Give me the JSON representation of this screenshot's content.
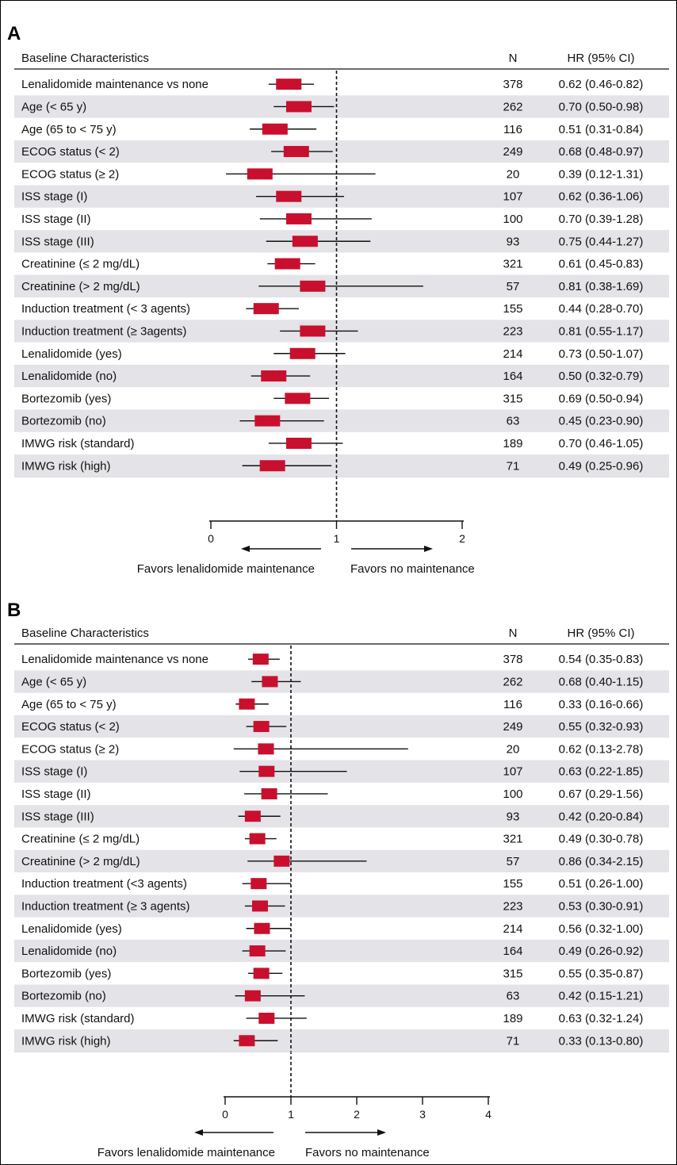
{
  "chart_data": [
    {
      "type": "forest",
      "panel_label": "A",
      "columns": {
        "characteristic": "Baseline Characteristics",
        "n": "N",
        "hr": "HR (95% CI)"
      },
      "xlim": [
        0,
        2
      ],
      "ticks": [
        "0",
        "1",
        "2"
      ],
      "reference_line": 1,
      "favors_left": "Favors lenalidomide maintenance",
      "favors_right": "Favors no maintenance",
      "rows": [
        {
          "label": "Lenalidomide maintenance vs none",
          "n": "378",
          "hr_text": "0.62 (0.46-0.82)",
          "hr": 0.62,
          "lo": 0.46,
          "hi": 0.82
        },
        {
          "label": "Age (< 65 y)",
          "n": "262",
          "hr_text": "0.70 (0.50-0.98)",
          "hr": 0.7,
          "lo": 0.5,
          "hi": 0.98
        },
        {
          "label": "Age (65 to < 75 y)",
          "n": "116",
          "hr_text": "0.51 (0.31-0.84)",
          "hr": 0.51,
          "lo": 0.31,
          "hi": 0.84
        },
        {
          "label": "ECOG status (< 2)",
          "n": "249",
          "hr_text": "0.68 (0.48-0.97)",
          "hr": 0.68,
          "lo": 0.48,
          "hi": 0.97
        },
        {
          "label": "ECOG status (≥ 2)",
          "n": "20",
          "hr_text": "0.39 (0.12-1.31)",
          "hr": 0.39,
          "lo": 0.12,
          "hi": 1.31
        },
        {
          "label": "ISS stage (I)",
          "n": "107",
          "hr_text": "0.62 (0.36-1.06)",
          "hr": 0.62,
          "lo": 0.36,
          "hi": 1.06
        },
        {
          "label": "ISS stage (II)",
          "n": "100",
          "hr_text": "0.70 (0.39-1.28)",
          "hr": 0.7,
          "lo": 0.39,
          "hi": 1.28
        },
        {
          "label": "ISS stage (III)",
          "n": "93",
          "hr_text": "0.75 (0.44-1.27)",
          "hr": 0.75,
          "lo": 0.44,
          "hi": 1.27
        },
        {
          "label": "Creatinine (≤ 2 mg/dL)",
          "n": "321",
          "hr_text": "0.61 (0.45-0.83)",
          "hr": 0.61,
          "lo": 0.45,
          "hi": 0.83
        },
        {
          "label": "Creatinine (> 2 mg/dL)",
          "n": "57",
          "hr_text": "0.81 (0.38-1.69)",
          "hr": 0.81,
          "lo": 0.38,
          "hi": 1.69
        },
        {
          "label": "Induction treatment (< 3 agents)",
          "n": "155",
          "hr_text": "0.44 (0.28-0.70)",
          "hr": 0.44,
          "lo": 0.28,
          "hi": 0.7
        },
        {
          "label": "Induction treatment (≥ 3agents)",
          "n": "223",
          "hr_text": "0.81 (0.55-1.17)",
          "hr": 0.81,
          "lo": 0.55,
          "hi": 1.17
        },
        {
          "label": "Lenalidomide (yes)",
          "n": "214",
          "hr_text": "0.73 (0.50-1.07)",
          "hr": 0.73,
          "lo": 0.5,
          "hi": 1.07
        },
        {
          "label": "Lenalidomide (no)",
          "n": "164",
          "hr_text": "0.50 (0.32-0.79)",
          "hr": 0.5,
          "lo": 0.32,
          "hi": 0.79
        },
        {
          "label": "Bortezomib (yes)",
          "n": "315",
          "hr_text": "0.69 (0.50-0.94)",
          "hr": 0.69,
          "lo": 0.5,
          "hi": 0.94
        },
        {
          "label": "Bortezomib (no)",
          "n": "63",
          "hr_text": "0.45 (0.23-0.90)",
          "hr": 0.45,
          "lo": 0.23,
          "hi": 0.9
        },
        {
          "label": "IMWG risk (standard)",
          "n": "189",
          "hr_text": "0.70 (0.46-1.05)",
          "hr": 0.7,
          "lo": 0.46,
          "hi": 1.05
        },
        {
          "label": "IMWG risk (high)",
          "n": "71",
          "hr_text": "0.49 (0.25-0.96)",
          "hr": 0.49,
          "lo": 0.25,
          "hi": 0.96
        }
      ]
    },
    {
      "type": "forest",
      "panel_label": "B",
      "columns": {
        "characteristic": "Baseline Characteristics",
        "n": "N",
        "hr": "HR (95% CI)"
      },
      "xlim": [
        0,
        4
      ],
      "ticks": [
        "0",
        "1",
        "2",
        "3",
        "4"
      ],
      "reference_line": 1,
      "favors_left": "Favors lenalidomide maintenance",
      "favors_right": "Favors no maintenance",
      "rows": [
        {
          "label": "Lenalidomide maintenance vs none",
          "n": "378",
          "hr_text": "0.54 (0.35-0.83)",
          "hr": 0.54,
          "lo": 0.35,
          "hi": 0.83
        },
        {
          "label": "Age (< 65 y)",
          "n": "262",
          "hr_text": "0.68 (0.40-1.15)",
          "hr": 0.68,
          "lo": 0.4,
          "hi": 1.15
        },
        {
          "label": "Age (65 to < 75 y)",
          "n": "116",
          "hr_text": "0.33 (0.16-0.66)",
          "hr": 0.33,
          "lo": 0.16,
          "hi": 0.66
        },
        {
          "label": "ECOG status (< 2)",
          "n": "249",
          "hr_text": "0.55 (0.32-0.93)",
          "hr": 0.55,
          "lo": 0.32,
          "hi": 0.93
        },
        {
          "label": "ECOG status (≥ 2)",
          "n": "20",
          "hr_text": "0.62 (0.13-2.78)",
          "hr": 0.62,
          "lo": 0.13,
          "hi": 2.78
        },
        {
          "label": "ISS stage (I)",
          "n": "107",
          "hr_text": "0.63 (0.22-1.85)",
          "hr": 0.63,
          "lo": 0.22,
          "hi": 1.85
        },
        {
          "label": "ISS stage (II)",
          "n": "100",
          "hr_text": "0.67 (0.29-1.56)",
          "hr": 0.67,
          "lo": 0.29,
          "hi": 1.56
        },
        {
          "label": "ISS stage (III)",
          "n": "93",
          "hr_text": "0.42 (0.20-0.84)",
          "hr": 0.42,
          "lo": 0.2,
          "hi": 0.84
        },
        {
          "label": "Creatinine (≤ 2 mg/dL)",
          "n": "321",
          "hr_text": "0.49 (0.30-0.78)",
          "hr": 0.49,
          "lo": 0.3,
          "hi": 0.78
        },
        {
          "label": "Creatinine (> 2 mg/dL)",
          "n": "57",
          "hr_text": "0.86 (0.34-2.15)",
          "hr": 0.86,
          "lo": 0.34,
          "hi": 2.15
        },
        {
          "label": "Induction treatment (<3 agents)",
          "n": "155",
          "hr_text": "0.51 (0.26-1.00)",
          "hr": 0.51,
          "lo": 0.26,
          "hi": 1.0
        },
        {
          "label": "Induction treatment (≥ 3 agents)",
          "n": "223",
          "hr_text": "0.53 (0.30-0.91)",
          "hr": 0.53,
          "lo": 0.3,
          "hi": 0.91
        },
        {
          "label": "Lenalidomide (yes)",
          "n": "214",
          "hr_text": "0.56 (0.32-1.00)",
          "hr": 0.56,
          "lo": 0.32,
          "hi": 1.0
        },
        {
          "label": "Lenalidomide (no)",
          "n": "164",
          "hr_text": "0.49 (0.26-0.92)",
          "hr": 0.49,
          "lo": 0.26,
          "hi": 0.92
        },
        {
          "label": "Bortezomib (yes)",
          "n": "315",
          "hr_text": "0.55 (0.35-0.87)",
          "hr": 0.55,
          "lo": 0.35,
          "hi": 0.87
        },
        {
          "label": "Bortezomib (no)",
          "n": "63",
          "hr_text": "0.42 (0.15-1.21)",
          "hr": 0.42,
          "lo": 0.15,
          "hi": 1.21
        },
        {
          "label": "IMWG risk (standard)",
          "n": "189",
          "hr_text": "0.63 (0.32-1.24)",
          "hr": 0.63,
          "lo": 0.32,
          "hi": 1.24
        },
        {
          "label": "IMWG risk (high)",
          "n": "71",
          "hr_text": "0.33 (0.13-0.80)",
          "hr": 0.33,
          "lo": 0.13,
          "hi": 0.8
        }
      ]
    }
  ],
  "colors": {
    "marker": "#c8102e",
    "stripe": "#e3e3e8",
    "line": "#111111"
  }
}
